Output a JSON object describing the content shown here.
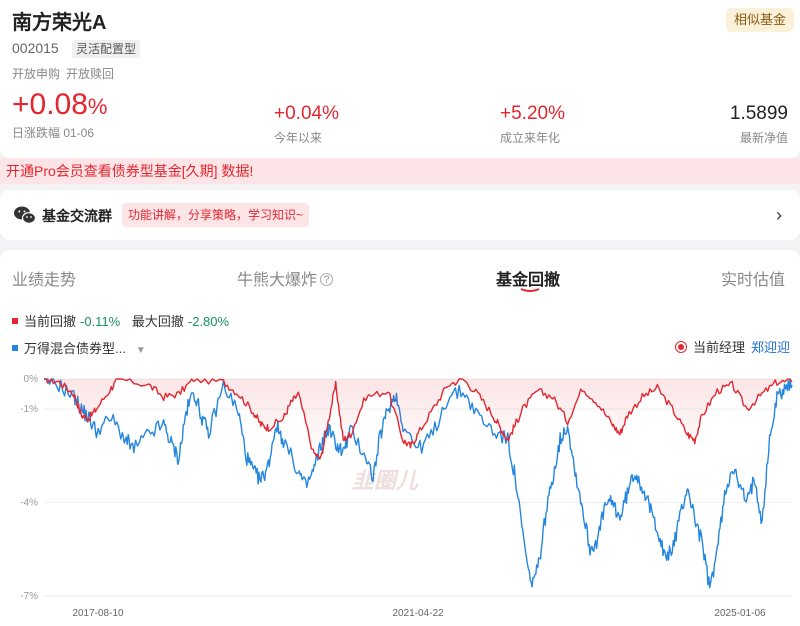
{
  "fund": {
    "name": "南方荣光A",
    "code": "002015",
    "type": "灵活配置型",
    "similar_label": "相似基金",
    "flags": [
      "开放申购",
      "开放赎回"
    ]
  },
  "stats": {
    "daily": {
      "value": "+0.08",
      "unit": "%",
      "label": "日涨跌幅 01-06"
    },
    "ytd": {
      "value": "+0.04%",
      "label": "今年以来"
    },
    "since_inception": {
      "value": "+5.20%",
      "label": "成立来年化"
    },
    "nav": {
      "value": "1.5899",
      "label": "最新净值"
    }
  },
  "promo": "开通Pro会员查看债券型基金[久期] 数据!",
  "group": {
    "title": "基金交流群",
    "desc": "功能讲解，分享策略，学习知识~"
  },
  "tabs": [
    {
      "label": "业绩走势"
    },
    {
      "label": "牛熊大爆炸"
    },
    {
      "label": "基金回撤"
    },
    {
      "label": "实时估值"
    }
  ],
  "legend": {
    "current_dd_label": "当前回撤",
    "current_dd_value": "-0.11%",
    "max_dd_label": "最大回撤",
    "max_dd_value": "-2.80%",
    "benchmark": "万得混合债券型..."
  },
  "manager": {
    "label": "当前经理",
    "name": "郑迎迎"
  },
  "colors": {
    "fund": "#e3262f",
    "benchmark": "#2486e0",
    "positive": "#e3262f",
    "negative": "#17915f"
  },
  "chart_data": {
    "type": "line",
    "y_ticks": [
      "0%",
      "-1%",
      "-4%",
      "-7%"
    ],
    "x_ticks": [
      "2017-08-10",
      "2021-04-22",
      "2025-01-06"
    ],
    "ylim": [
      -7,
      0
    ],
    "watermark": "韭圈儿",
    "series": [
      {
        "name": "当前回撤",
        "color": "#e3262f",
        "points": [
          [
            0,
            0
          ],
          [
            2,
            -0.1
          ],
          [
            4,
            -0.5
          ],
          [
            5,
            -1.2
          ],
          [
            6,
            -1.3
          ],
          [
            7,
            -1.0
          ],
          [
            9,
            -0.3
          ],
          [
            10,
            0
          ],
          [
            14,
            -0.2
          ],
          [
            16,
            -0.6
          ],
          [
            18,
            -0.5
          ],
          [
            20,
            0
          ],
          [
            24,
            -0.1
          ],
          [
            26,
            -0.5
          ],
          [
            28,
            -1.1
          ],
          [
            29,
            -1.5
          ],
          [
            30,
            -1.6
          ],
          [
            32,
            -1.3
          ],
          [
            33,
            -0.8
          ],
          [
            34,
            -0.5
          ],
          [
            36,
            -2.4
          ],
          [
            37,
            -2.6
          ],
          [
            38,
            -1.4
          ],
          [
            39,
            -0.2
          ],
          [
            40,
            -2.0
          ],
          [
            41,
            -1.8
          ],
          [
            43,
            -0.6
          ],
          [
            46,
            -0.4
          ],
          [
            48,
            -2.0
          ],
          [
            49,
            -2.2
          ],
          [
            50,
            -1.8
          ],
          [
            52,
            -1.0
          ],
          [
            54,
            -0.2
          ],
          [
            56,
            0
          ],
          [
            58,
            -0.5
          ],
          [
            60,
            -1.2
          ],
          [
            61,
            -1.6
          ],
          [
            62,
            -2.0
          ],
          [
            63,
            -1.5
          ],
          [
            64,
            -1.0
          ],
          [
            66,
            -0.4
          ],
          [
            68,
            -0.6
          ],
          [
            70,
            -1.4
          ],
          [
            72,
            -0.3
          ],
          [
            74,
            -0.8
          ],
          [
            76,
            -1.5
          ],
          [
            77,
            -1.8
          ],
          [
            78,
            -1.2
          ],
          [
            80,
            -0.6
          ],
          [
            82,
            -0.3
          ],
          [
            84,
            -1.0
          ],
          [
            86,
            -1.8
          ],
          [
            87,
            -2.0
          ],
          [
            88,
            -1.2
          ],
          [
            90,
            -0.4
          ],
          [
            92,
            -0.2
          ],
          [
            94,
            -1.0
          ],
          [
            96,
            -0.5
          ],
          [
            98,
            -0.1
          ],
          [
            100,
            -0.1
          ]
        ]
      },
      {
        "name": "万得混合债券型...",
        "color": "#2486e0",
        "points": [
          [
            0,
            0
          ],
          [
            2,
            -0.2
          ],
          [
            4,
            -0.6
          ],
          [
            5,
            -1.0
          ],
          [
            6,
            -1.3
          ],
          [
            7,
            -1.7
          ],
          [
            9,
            -1.3
          ],
          [
            11,
            -2.0
          ],
          [
            12,
            -2.3
          ],
          [
            14,
            -1.8
          ],
          [
            16,
            -1.5
          ],
          [
            17,
            -2.1
          ],
          [
            18,
            -2.6
          ],
          [
            19,
            -1.1
          ],
          [
            20,
            -0.4
          ],
          [
            21,
            -1.2
          ],
          [
            22,
            -1.8
          ],
          [
            24,
            -0.2
          ],
          [
            26,
            -1.1
          ],
          [
            27,
            -2.5
          ],
          [
            28,
            -3.0
          ],
          [
            29,
            -3.3
          ],
          [
            30,
            -2.8
          ],
          [
            31,
            -1.5
          ],
          [
            32,
            -2.0
          ],
          [
            34,
            -3.0
          ],
          [
            35,
            -3.5
          ],
          [
            36,
            -3.0
          ],
          [
            37,
            -2.2
          ],
          [
            38,
            -1.6
          ],
          [
            39,
            -2.1
          ],
          [
            40,
            -2.4
          ],
          [
            41,
            -1.7
          ],
          [
            43,
            -2.5
          ],
          [
            44,
            -3.2
          ],
          [
            45,
            -1.8
          ],
          [
            46,
            -1.0
          ],
          [
            47,
            -0.5
          ],
          [
            48,
            -1.5
          ],
          [
            50,
            -2.3
          ],
          [
            52,
            -1.8
          ],
          [
            54,
            -0.6
          ],
          [
            56,
            -0.4
          ],
          [
            58,
            -1.2
          ],
          [
            60,
            -1.7
          ],
          [
            62,
            -2.0
          ],
          [
            63,
            -3.2
          ],
          [
            64,
            -5.0
          ],
          [
            65,
            -6.6
          ],
          [
            66,
            -6.2
          ],
          [
            67,
            -4.5
          ],
          [
            68,
            -3.2
          ],
          [
            69,
            -2.0
          ],
          [
            70,
            -1.5
          ],
          [
            71,
            -3.0
          ],
          [
            72,
            -4.2
          ],
          [
            73,
            -5.5
          ],
          [
            74,
            -5.2
          ],
          [
            75,
            -4.1
          ],
          [
            76,
            -4.0
          ],
          [
            77,
            -4.5
          ],
          [
            78,
            -3.7
          ],
          [
            79,
            -3.0
          ],
          [
            80,
            -3.5
          ],
          [
            81,
            -4.2
          ],
          [
            82,
            -4.8
          ],
          [
            83,
            -5.8
          ],
          [
            84,
            -5.5
          ],
          [
            85,
            -4.5
          ],
          [
            86,
            -3.5
          ],
          [
            87,
            -4.5
          ],
          [
            88,
            -5.3
          ],
          [
            89,
            -6.8
          ],
          [
            90,
            -5.5
          ],
          [
            91,
            -3.8
          ],
          [
            92,
            -2.8
          ],
          [
            93,
            -3.5
          ],
          [
            94,
            -4.0
          ],
          [
            95,
            -3.2
          ],
          [
            96,
            -4.6
          ],
          [
            97,
            -2.0
          ],
          [
            98,
            -0.6
          ],
          [
            99,
            -0.3
          ],
          [
            100,
            -0.2
          ]
        ]
      }
    ]
  }
}
